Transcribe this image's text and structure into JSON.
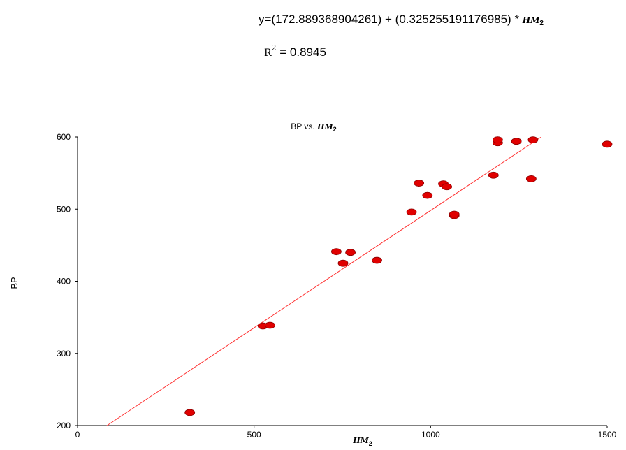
{
  "equation": {
    "prefix": "y=(172.889368904261) + (0.325255191176985) * ",
    "var_main": "HM",
    "var_sub": "2"
  },
  "r2": {
    "symbol": "R",
    "sup": "2",
    "eq": " = ",
    "value": "0.8945"
  },
  "colors": {
    "points": "#e00000",
    "fit_line": "#ff3030",
    "axis": "#000000"
  },
  "chart_data": {
    "type": "scatter",
    "title_prefix": "BP vs. ",
    "title_var": "HM",
    "title_sub": "2",
    "xlabel_var": "HM",
    "xlabel_sub": "2",
    "ylabel": "BP",
    "xlim": [
      0,
      1500
    ],
    "ylim": [
      200,
      600
    ],
    "xticks": [
      0,
      500,
      1000,
      1500
    ],
    "yticks": [
      200,
      300,
      400,
      500,
      600
    ],
    "points": [
      {
        "x": 318,
        "y": 218
      },
      {
        "x": 525,
        "y": 338
      },
      {
        "x": 545,
        "y": 339
      },
      {
        "x": 733,
        "y": 441
      },
      {
        "x": 752,
        "y": 425
      },
      {
        "x": 773,
        "y": 440
      },
      {
        "x": 848,
        "y": 429
      },
      {
        "x": 946,
        "y": 496
      },
      {
        "x": 967,
        "y": 536
      },
      {
        "x": 991,
        "y": 519
      },
      {
        "x": 1036,
        "y": 535
      },
      {
        "x": 1046,
        "y": 531
      },
      {
        "x": 1067,
        "y": 491
      },
      {
        "x": 1067,
        "y": 493
      },
      {
        "x": 1178,
        "y": 547
      },
      {
        "x": 1190,
        "y": 592
      },
      {
        "x": 1190,
        "y": 596
      },
      {
        "x": 1243,
        "y": 594
      },
      {
        "x": 1285,
        "y": 542
      },
      {
        "x": 1290,
        "y": 596
      },
      {
        "x": 1500,
        "y": 590
      }
    ],
    "fit": {
      "intercept": 172.889368904261,
      "slope": 0.325255191176985,
      "x_range": [
        83,
        1312
      ]
    }
  }
}
